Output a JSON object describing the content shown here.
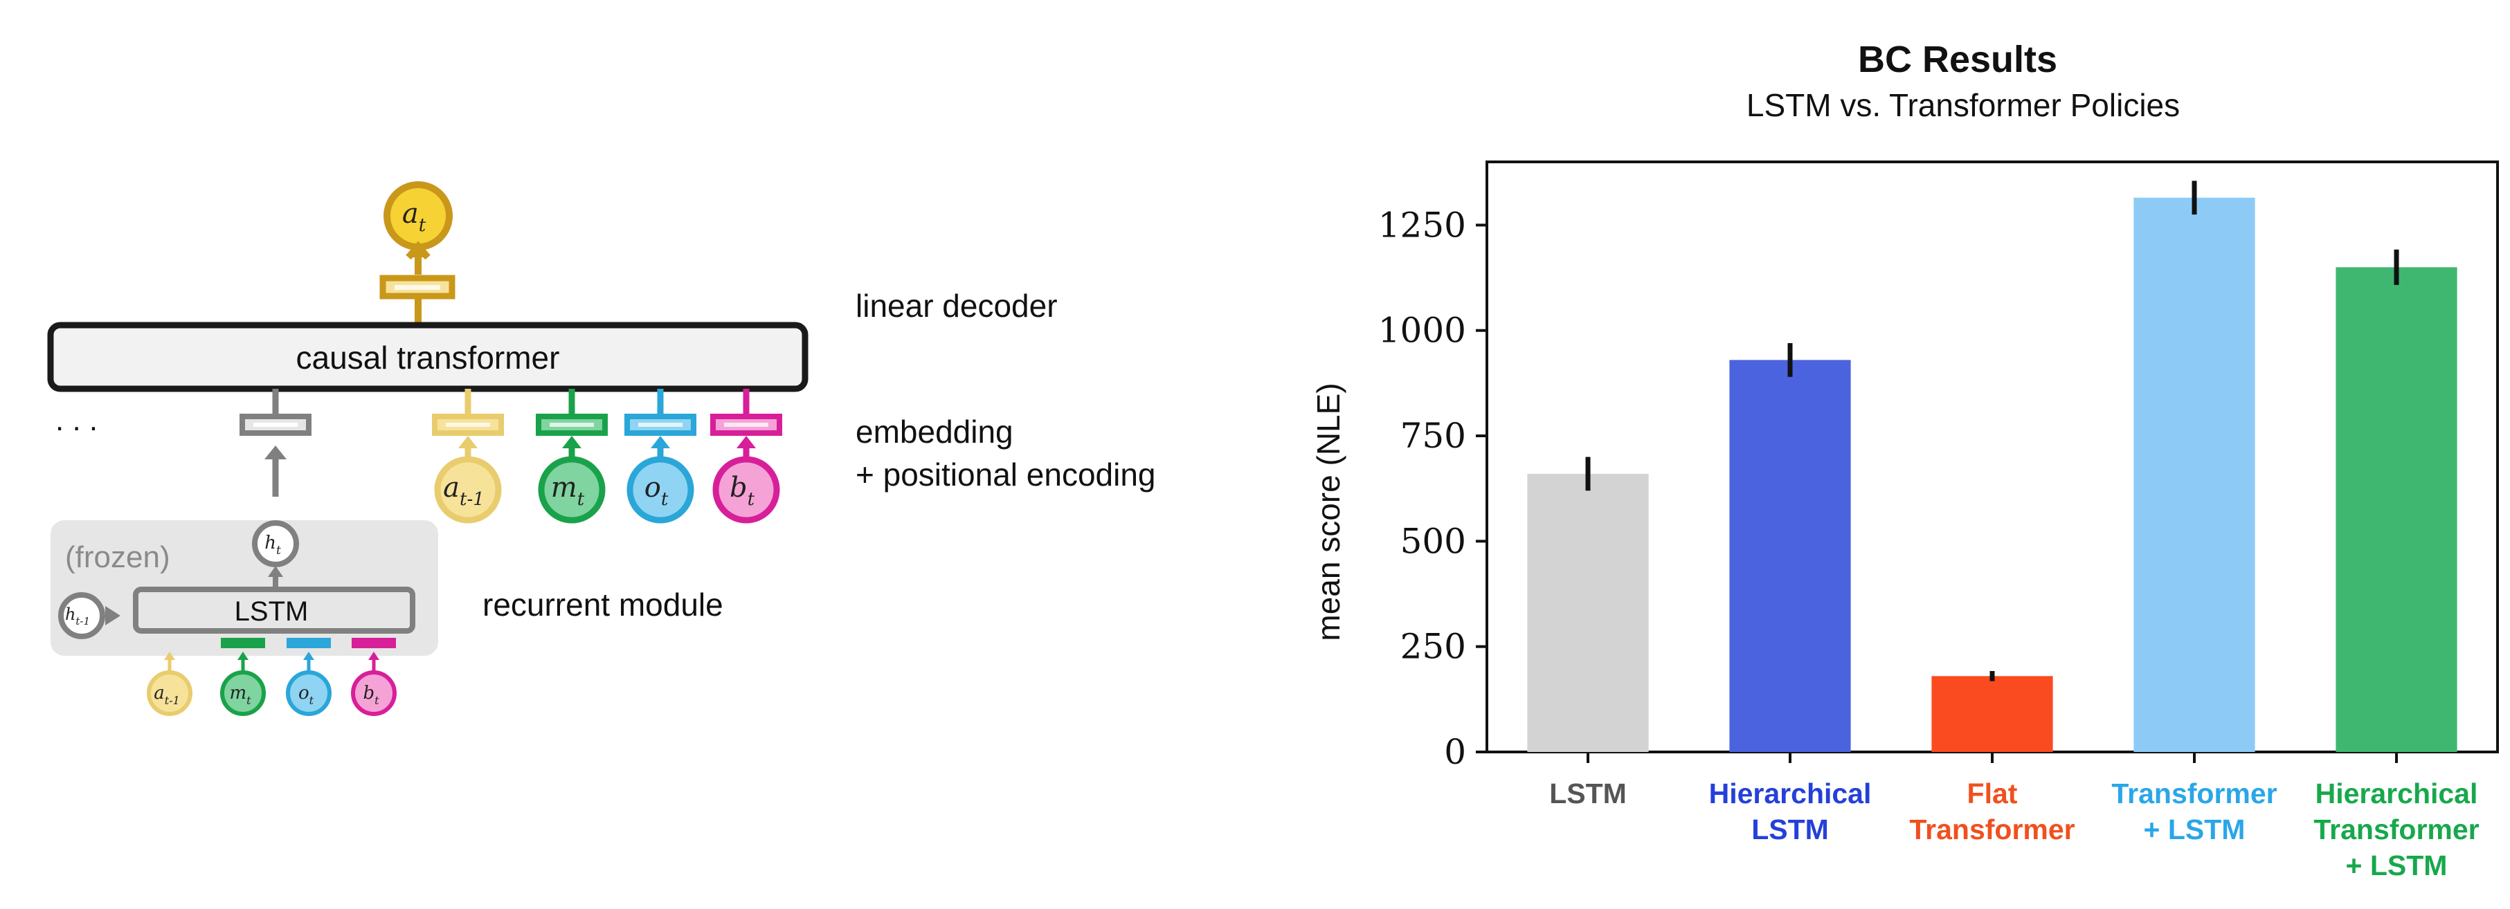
{
  "diagram": {
    "output_token": {
      "base": "a",
      "sub": "t"
    },
    "transformer_label": "causal transformer",
    "ellipsis": ". . .",
    "label_decoder": "linear decoder",
    "label_embedding_1": "embedding",
    "label_embedding_2": "+ positional encoding",
    "label_recurrent": "recurrent module",
    "frozen_label": "(frozen)",
    "lstm_label": "LSTM",
    "hidden_out": {
      "base": "h",
      "sub": "t"
    },
    "hidden_in": {
      "base": "h",
      "sub": "t-1"
    },
    "inputs": [
      {
        "base": "a",
        "sub": "t-1",
        "color": "#e8cc6e",
        "fill": "#f7e29a"
      },
      {
        "base": "m",
        "sub": "t",
        "color": "#1aa24a",
        "fill": "#7fd4a0"
      },
      {
        "base": "o",
        "sub": "t",
        "color": "#2aa6d8",
        "fill": "#8fd4f2"
      },
      {
        "base": "b",
        "sub": "t",
        "color": "#d81f9a",
        "fill": "#f5a3d6"
      }
    ],
    "output_color": "#c9971a",
    "output_fill": "#f6d234",
    "gray": "#808080"
  },
  "chart_data": {
    "type": "bar",
    "title": "BC Results",
    "subtitle": "LSTM vs. Transformer Policies",
    "ylabel": "mean score (NLE)",
    "ylim": [
      0,
      1400
    ],
    "yticks": [
      0,
      250,
      500,
      750,
      1000,
      1250
    ],
    "categories": [
      {
        "lines": [
          "LSTM"
        ],
        "color": "#555555"
      },
      {
        "lines": [
          "Hierarchical",
          "LSTM"
        ],
        "color": "#2540d8"
      },
      {
        "lines": [
          "Flat",
          "Transformer"
        ],
        "color": "#f0501e"
      },
      {
        "lines": [
          "Transformer",
          "+ LSTM"
        ],
        "color": "#2aa6e8"
      },
      {
        "lines": [
          "Hierarchical",
          "Transformer",
          "+ LSTM"
        ],
        "color": "#17a84c"
      }
    ],
    "values": [
      660,
      930,
      180,
      1315,
      1150
    ],
    "errors": [
      40,
      40,
      12,
      40,
      42
    ],
    "bar_colors": [
      "#d3d3d3",
      "#4c63df",
      "#fa4b20",
      "#8dcbf6",
      "#40b770"
    ]
  }
}
